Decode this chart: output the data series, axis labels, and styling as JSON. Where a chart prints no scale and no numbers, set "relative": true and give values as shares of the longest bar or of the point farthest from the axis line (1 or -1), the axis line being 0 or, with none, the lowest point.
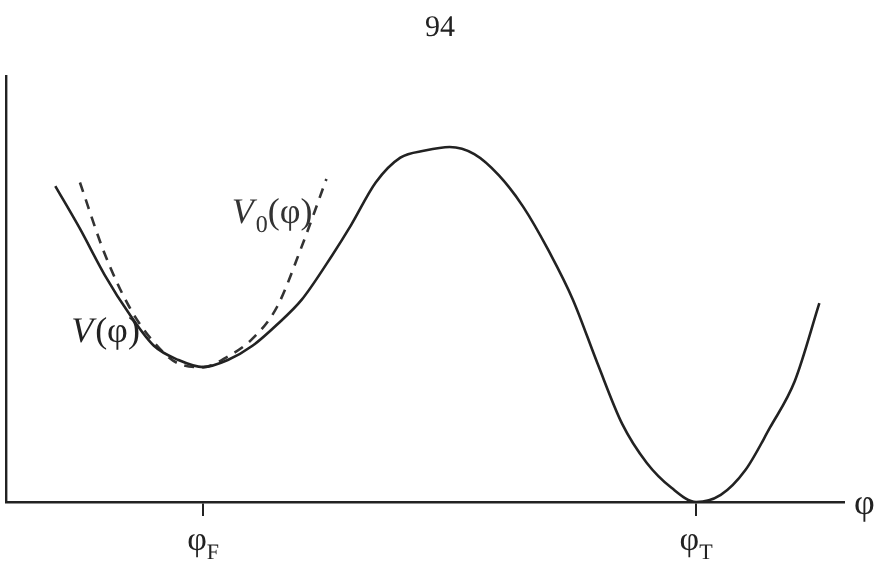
{
  "chart_data": {
    "type": "line",
    "relative": true,
    "xlabel": "φ",
    "annotations": [
      "94"
    ],
    "categories": [
      null,
      null,
      null,
      null,
      null,
      null,
      null,
      null,
      "φ$_{F}$",
      null,
      null,
      null,
      null,
      null,
      null,
      null,
      null,
      null,
      null,
      null,
      null,
      null,
      null,
      null,
      null,
      null,
      null,
      null,
      "φ$_{T}$",
      null,
      null,
      null,
      null,
      null,
      null
    ],
    "grid": false,
    "legend": false,
    "marker": "none",
    "series": [
      {
        "name": "V(φ)",
        "color": "#222222",
        "line_style": "solid",
        "values": [
          null,
          null,
          0.89,
          0.77,
          0.64,
          0.53,
          0.44,
          0.4,
          0.38,
          0.4,
          0.44,
          0.5,
          0.57,
          0.67,
          0.78,
          0.9,
          0.97,
          0.99,
          1,
          0.98,
          0.92,
          0.83,
          0.71,
          0.57,
          0.39,
          0.22,
          0.11,
          0.04,
          0,
          0.02,
          0.09,
          0.21,
          0.34,
          0.56,
          null
        ]
      },
      {
        "name": "V$_{0}$(φ)",
        "color": "#333333",
        "line_style": "dashed",
        "values": [
          null,
          null,
          null,
          0.9,
          0.7,
          0.55,
          0.45,
          0.39,
          0.38,
          0.41,
          0.46,
          0.55,
          0.72,
          0.91,
          null,
          null,
          null,
          null,
          null,
          null,
          null,
          null,
          null,
          null,
          null,
          null,
          null,
          null,
          null,
          null,
          null,
          null,
          null,
          null,
          null
        ]
      }
    ]
  }
}
